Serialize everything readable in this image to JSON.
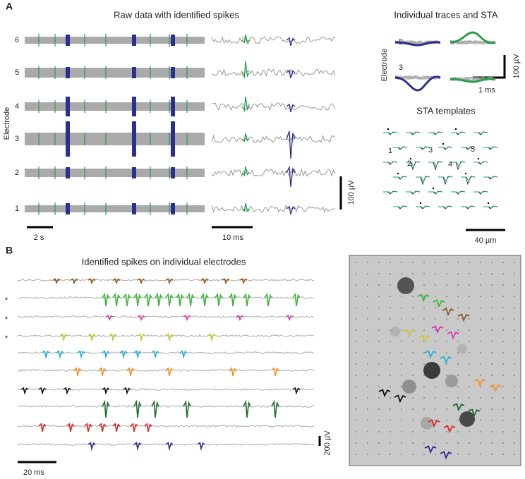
{
  "panel_a": {
    "label": "A",
    "raw_title": "Raw data with identified spikes",
    "electrode_axis": "Electrode",
    "electrodes": [
      "1",
      "2",
      "3",
      "4",
      "5",
      "6"
    ],
    "scale_long": "2 s",
    "scale_short": "10 ms",
    "scale_voltage": "100 µV",
    "sta_title": "Individual traces and STA",
    "sta_axis": "Electrode",
    "sta_electrodes": [
      "5",
      "3"
    ],
    "sta_scale_voltage": "100 µV",
    "sta_scale_time": "1 ms",
    "templates_title": "STA templates",
    "template_labels": [
      "1",
      "2",
      "3",
      "4",
      "5"
    ],
    "templates_scale": "40 µm"
  },
  "panel_b": {
    "label": "B",
    "title": "Identified spikes on individual electrodes",
    "markers": [
      "*",
      "*",
      "*"
    ],
    "scale_time": "20 ms",
    "scale_voltage": "200 µV"
  }
}
